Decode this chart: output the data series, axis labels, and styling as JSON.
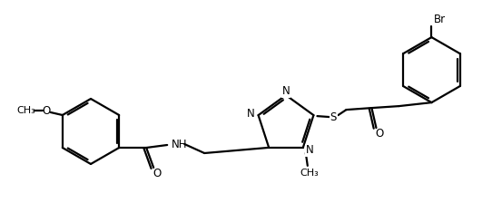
{
  "bg_color": "#ffffff",
  "line_color": "#000000",
  "lw": 1.6,
  "fs": 8.5,
  "figsize": [
    5.53,
    2.45
  ],
  "dpi": 100,
  "xlim": [
    0,
    553
  ],
  "ylim": [
    0,
    245
  ]
}
